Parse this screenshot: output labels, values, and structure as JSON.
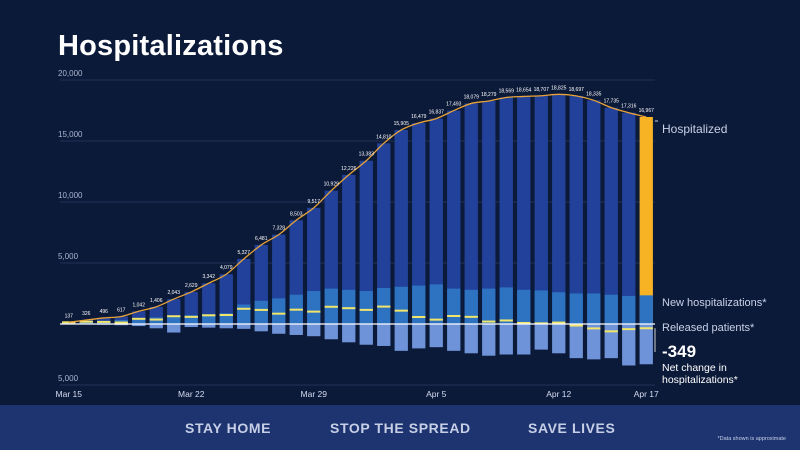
{
  "title": "Hospitalizations",
  "footer": {
    "links": [
      "STAY HOME",
      "STOP THE SPREAD",
      "SAVE LIVES"
    ],
    "note": "*Data shown is approximate"
  },
  "labels": {
    "hospitalized": "Hospitalized",
    "new": "New hospitalizations*",
    "released": "Released patients*",
    "net_value": "-349",
    "net_caption": "Net change in hospitalizations*"
  },
  "colors": {
    "background": "#0c1a3a",
    "hospitalized_bar": "#22419a",
    "new_bar": "#2d73c2",
    "released_bar": "#6f93d8",
    "highlight": "#f8b324",
    "trend": "#e7a33a",
    "net_marker": "#f1e56a"
  },
  "chart_data": {
    "type": "bar",
    "title": "Hospitalizations",
    "x": [
      "Mar 15",
      "Mar 16",
      "Mar 17",
      "Mar 18",
      "Mar 19",
      "Mar 20",
      "Mar 21",
      "Mar 22",
      "Mar 23",
      "Mar 24",
      "Mar 25",
      "Mar 26",
      "Mar 27",
      "Mar 28",
      "Mar 29",
      "Mar 30",
      "Mar 31",
      "Apr 1",
      "Apr 2",
      "Apr 3",
      "Apr 4",
      "Apr 5",
      "Apr 6",
      "Apr 7",
      "Apr 8",
      "Apr 9",
      "Apr 10",
      "Apr 11",
      "Apr 12",
      "Apr 13",
      "Apr 14",
      "Apr 15",
      "Apr 16",
      "Apr 17"
    ],
    "xticks": [
      "Mar 15",
      "Mar 22",
      "Mar 29",
      "Apr 5",
      "Apr 12",
      "Apr 17"
    ],
    "ylim": [
      -5000,
      20000
    ],
    "yticks": [
      "20,000",
      "15,000",
      "10,000",
      "5,000",
      "5,000"
    ],
    "ytick_values": [
      20000,
      15000,
      10000,
      5000,
      -5000
    ],
    "series": [
      {
        "name": "Hospitalized",
        "values": [
          137,
          326,
          496,
          617,
          1042,
          1406,
          2043,
          2629,
          3342,
          4079,
          5327,
          6481,
          7328,
          8503,
          9517,
          10929,
          12226,
          13383,
          14810,
          15905,
          16479,
          16837,
          17493,
          18079,
          18279,
          18569,
          18654,
          18707,
          18825,
          18697,
          18335,
          17735,
          17316,
          16967
        ],
        "data_labels": [
          "137",
          "326",
          "496",
          "617",
          "1,042",
          "1,406",
          "2,043",
          "2,629",
          "3,342",
          "4,079",
          "5,327",
          "6,481",
          "7,328",
          "8,503",
          "9,517",
          "10,929",
          "12,226",
          "13,383",
          "14,810",
          "15,905",
          "16,479",
          "16,837",
          "17,493",
          "18,079",
          "18,279",
          "18,569",
          "18,654",
          "18,707",
          "18,825",
          "18,697",
          "18,335",
          "17,735",
          "17,316",
          "16,967"
        ]
      },
      {
        "name": "New hospitalizations*",
        "values": [
          130,
          200,
          260,
          330,
          420,
          540,
          650,
          720,
          800,
          880,
          1600,
          1900,
          2100,
          2400,
          2700,
          2900,
          2800,
          2700,
          2950,
          3050,
          3150,
          3250,
          2900,
          2800,
          2900,
          3000,
          2800,
          2750,
          2600,
          2500,
          2500,
          2400,
          2300,
          2350
        ]
      },
      {
        "name": "Released patients*",
        "values": [
          0,
          -30,
          -60,
          -100,
          -170,
          -350,
          -700,
          -250,
          -300,
          -350,
          -400,
          -600,
          -800,
          -900,
          -1000,
          -1250,
          -1500,
          -1700,
          -1800,
          -2200,
          -2000,
          -1900,
          -2200,
          -2400,
          -2600,
          -2500,
          -2500,
          -2100,
          -2400,
          -2800,
          -2900,
          -2800,
          -3400,
          -3300
        ]
      }
    ],
    "net_change_last": -349,
    "trend_line": true,
    "grid": true,
    "legend": "right-side labels"
  }
}
